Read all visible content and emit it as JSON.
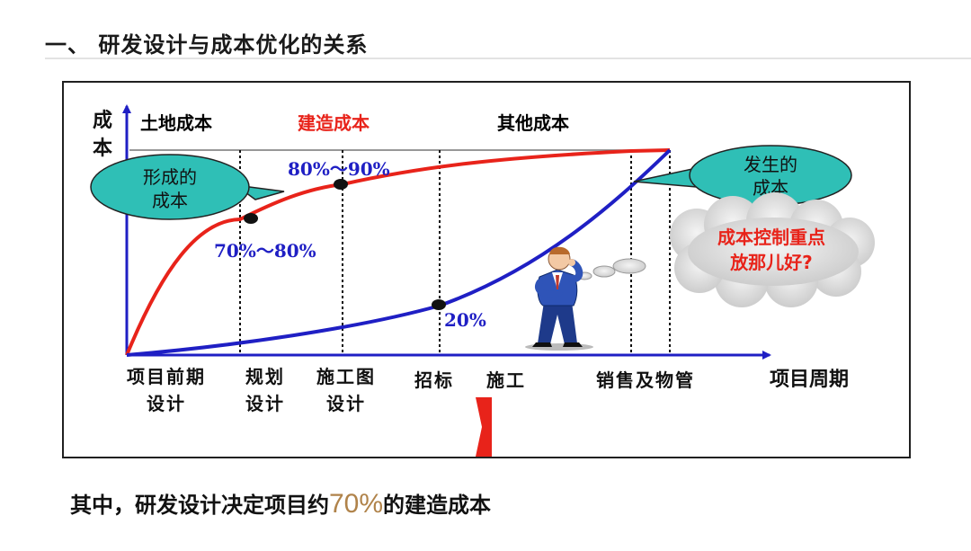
{
  "page": {
    "title": "一、 研发设计与成本优化的关系",
    "conclusion_prefix": "其中，研发设计决定项目约",
    "conclusion_highlight": "70%",
    "conclusion_suffix": "的建造成本"
  },
  "diagram": {
    "y_axis_label": [
      "成",
      "本"
    ],
    "x_axis_label": "项目周期",
    "cost_categories": [
      {
        "label": "土地成本",
        "color": "#000000"
      },
      {
        "label": "建造成本",
        "color": "#e8231a"
      },
      {
        "label": "其他成本",
        "color": "#000000"
      }
    ],
    "phases": [
      {
        "lines": [
          "项目前期",
          "设计"
        ]
      },
      {
        "lines": [
          "规划",
          "设计"
        ]
      },
      {
        "lines": [
          "施工图",
          "设计"
        ]
      },
      {
        "lines": [
          "招标"
        ]
      },
      {
        "lines": [
          "施工"
        ]
      },
      {
        "lines": [
          "销售及物管"
        ]
      }
    ],
    "curves": [
      {
        "id": "formed-cost",
        "color": "#e8231a"
      },
      {
        "id": "incurred-cost",
        "color": "#1f1fc4"
      }
    ],
    "point_labels": [
      "70%～80%",
      "80%～90%",
      "20%"
    ],
    "bubbles": {
      "formed": [
        "形成的",
        "成本"
      ],
      "incurred": [
        "发生的",
        "成本"
      ],
      "thought": [
        "成本控制重点",
        "放那儿好?"
      ]
    },
    "colors": {
      "axis": "#1f1fc4",
      "formed_curve": "#e8231a",
      "incurred_curve": "#1f1fc4",
      "bubble_fill": "#2fbfb6",
      "label_blue": "#1f1fc4",
      "highlight": "#b0834a"
    }
  }
}
